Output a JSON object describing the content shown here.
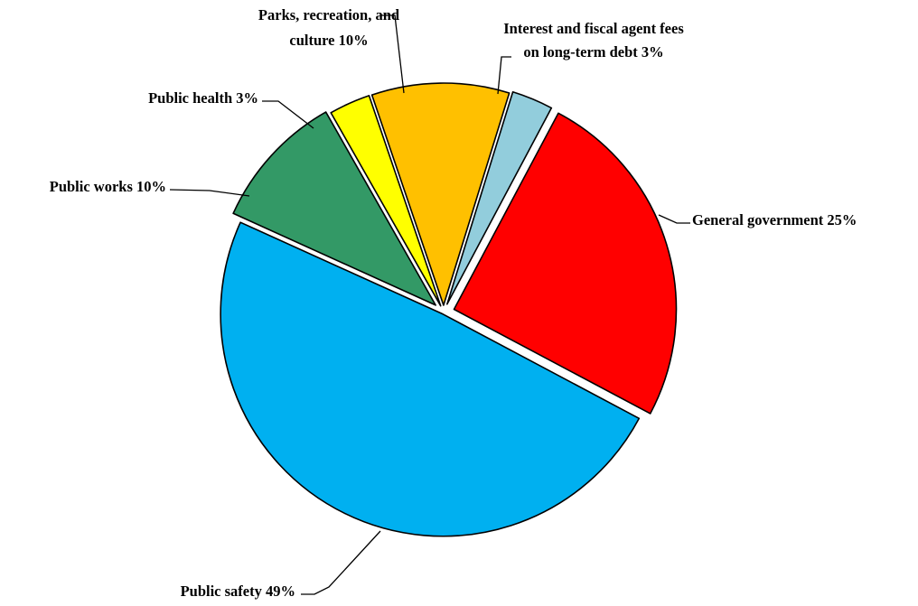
{
  "chart_data": {
    "type": "pie",
    "title": "",
    "slices": [
      {
        "label": "General government",
        "percent_text": "25%",
        "value": 25,
        "color": "#ff0000"
      },
      {
        "label": "Public safety",
        "percent_text": "49%",
        "value": 49,
        "color": "#00b0f0"
      },
      {
        "label": "Public works",
        "percent_text": "10%",
        "value": 10,
        "color": "#339966"
      },
      {
        "label": "Public health",
        "percent_text": "3%",
        "value": 3,
        "color": "#ffff00"
      },
      {
        "label": "Parks, recreation, and culture",
        "percent_text": "10%",
        "value": 10,
        "color": "#ffc000"
      },
      {
        "label": "Interest and fiscal agent fees on long-term debt",
        "percent_text": "3%",
        "value": 3,
        "color": "#92cddc"
      }
    ],
    "legend": "none",
    "exploded": true
  }
}
